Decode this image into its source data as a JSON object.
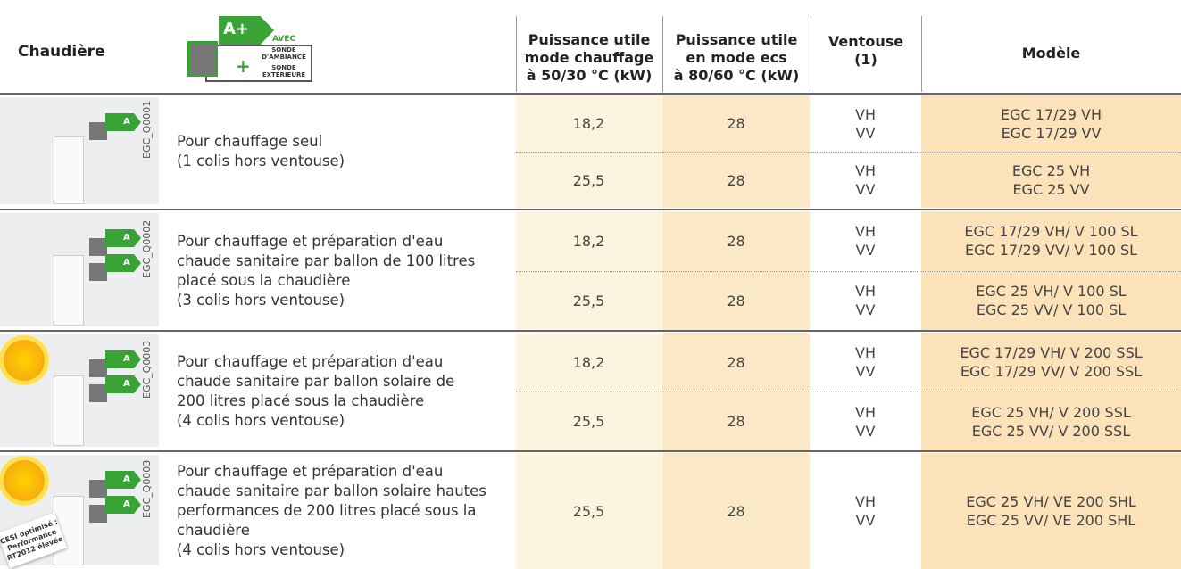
{
  "header": {
    "boiler": "Chaudière",
    "label": {
      "grade": "A+",
      "with": "AVEC",
      "probe1": "SONDE",
      "probe1b": "D'AMBIANCE",
      "plus": "+",
      "probe2": "SONDE",
      "probe2b": "EXTÉRIEURE"
    },
    "heating": [
      "Puissance utile",
      "mode chauffage",
      "à 50/30 °C (kW)"
    ],
    "dhw": [
      "Puissance utile",
      "en mode ecs",
      "à 80/60 °C (kW)"
    ],
    "flue": [
      "Ventouse",
      "(1)"
    ],
    "model": "Modèle"
  },
  "groups": [
    {
      "ref": "EGC_Q0001",
      "badges": [
        "A"
      ],
      "description": [
        "Pour chauffage seul",
        "(1 colis hors ventouse)"
      ],
      "rows": [
        {
          "heating": "18,2",
          "dhw": "28",
          "flue": [
            "VH",
            "VV"
          ],
          "model": [
            "EGC 17/29 VH",
            "EGC 17/29 VV"
          ]
        },
        {
          "heating": "25,5",
          "dhw": "28",
          "flue": [
            "VH",
            "VV"
          ],
          "model": [
            "EGC 25 VH",
            "EGC 25 VV"
          ]
        }
      ]
    },
    {
      "ref": "EGC_Q0002",
      "badges": [
        "A",
        "A"
      ],
      "description": [
        "Pour chauffage et préparation d'eau",
        "chaude sanitaire par ballon de 100 litres",
        "placé sous la chaudière",
        "(3 colis hors ventouse)"
      ],
      "rows": [
        {
          "heating": "18,2",
          "dhw": "28",
          "flue": [
            "VH",
            "VV"
          ],
          "model": [
            "EGC 17/29 VH/ V 100 SL",
            "EGC 17/29 VV/ V 100 SL"
          ]
        },
        {
          "heating": "25,5",
          "dhw": "28",
          "flue": [
            "VH",
            "VV"
          ],
          "model": [
            "EGC 25 VH/ V 100 SL",
            "EGC 25 VV/ V 100 SL"
          ]
        }
      ]
    },
    {
      "ref": "EGC_Q0003",
      "badges": [
        "A",
        "A"
      ],
      "description": [
        "Pour chauffage et préparation d'eau",
        "chaude sanitaire par ballon solaire de",
        "200 litres placé sous la chaudière",
        "(4 colis hors ventouse)"
      ],
      "rows": [
        {
          "heating": "18,2",
          "dhw": "28",
          "flue": [
            "VH",
            "VV"
          ],
          "model": [
            "EGC 17/29 VH/ V 200 SSL",
            "EGC 17/29 VV/ V 200 SSL"
          ]
        },
        {
          "heating": "25,5",
          "dhw": "28",
          "flue": [
            "VH",
            "VV"
          ],
          "model": [
            "EGC 25 VH/ V 200 SSL",
            "EGC 25 VV/ V 200 SSL"
          ]
        }
      ]
    },
    {
      "ref": "EGC_Q0003",
      "badges": [
        "A",
        "A"
      ],
      "note": [
        "CESI optimisé :",
        "Performance",
        "RT2012 élevée"
      ],
      "description": [
        "Pour chauffage et préparation d'eau",
        "chaude sanitaire par ballon solaire hautes",
        "performances de 200 litres placé sous la",
        "chaudière",
        "(4 colis hors ventouse)"
      ],
      "rows": [
        {
          "heating": "25,5",
          "dhw": "28",
          "flue": [
            "VH",
            "VV"
          ],
          "model": [
            "EGC 25 VH/ VE 200 SHL",
            "EGC 25 VV/ VE 200 SHL"
          ]
        }
      ]
    }
  ]
}
